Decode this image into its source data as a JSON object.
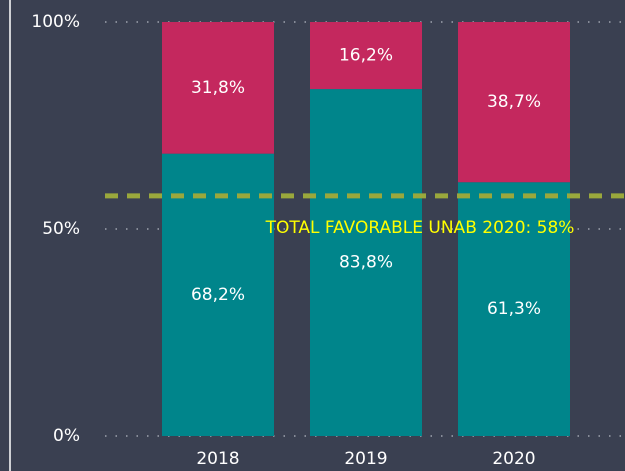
{
  "chart_data": {
    "type": "stacked_bar",
    "categories": [
      "2018",
      "2019",
      "2020"
    ],
    "series": [
      {
        "color": "#00858b",
        "values": [
          68.2,
          83.8,
          61.3
        ],
        "value_labels": [
          "68,2%",
          "83,8%",
          "61,3%"
        ]
      },
      {
        "color": "#c4285e",
        "values": [
          31.8,
          16.2,
          38.7
        ],
        "value_labels": [
          "31,8%",
          "16,2%",
          "38,7%"
        ]
      }
    ],
    "ylim": [
      0,
      100
    ],
    "yticks": [
      {
        "value": 0,
        "label": "0%"
      },
      {
        "value": 50,
        "label": "50%"
      },
      {
        "value": 100,
        "label": "100%"
      }
    ],
    "grid": true,
    "reference_line": {
      "value": 58,
      "label": "TOTAL FAVORABLE UNAB 2020: 58%",
      "color": "#9aa83c",
      "label_color": "#ffff00"
    }
  }
}
